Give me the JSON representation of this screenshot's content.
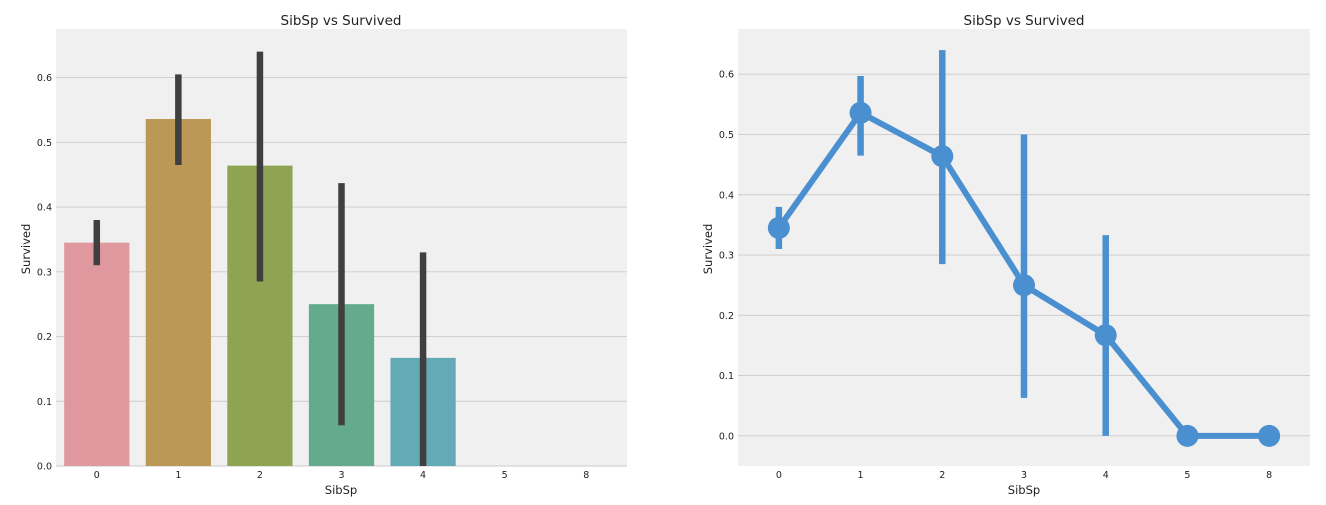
{
  "chart_data": [
    {
      "type": "bar",
      "title": "SibSp vs Survived",
      "xlabel": "SibSp",
      "ylabel": "Survived",
      "categories": [
        "0",
        "1",
        "2",
        "3",
        "4",
        "5",
        "8"
      ],
      "values": [
        0.345,
        0.536,
        0.464,
        0.25,
        0.167,
        0.0,
        0.0
      ],
      "error_bars": [
        [
          0.31,
          0.38
        ],
        [
          0.465,
          0.605
        ],
        [
          0.285,
          0.64
        ],
        [
          0.063,
          0.437
        ],
        [
          0.0,
          0.33
        ],
        null,
        null
      ],
      "colors": [
        "#e0989f",
        "#bc9856",
        "#8ea453",
        "#64ab8e",
        "#64a9b6",
        "#8d9fd5",
        "#c295cf"
      ],
      "error_color": "#3f3f3f",
      "ylim": [
        0,
        0.675
      ],
      "yticks": [
        0.0,
        0.1,
        0.2,
        0.3,
        0.4,
        0.5,
        0.6
      ],
      "ytick_labels": [
        "0.0",
        "0.1",
        "0.2",
        "0.3",
        "0.4",
        "0.5",
        "0.6"
      ],
      "grid": "horizontal"
    },
    {
      "type": "line",
      "title": "SibSp vs Survived",
      "xlabel": "SibSp",
      "ylabel": "Survived",
      "categories": [
        "0",
        "1",
        "2",
        "3",
        "4",
        "5",
        "8"
      ],
      "values": [
        0.345,
        0.536,
        0.464,
        0.25,
        0.167,
        0.0,
        0.0
      ],
      "error_bars": [
        [
          0.31,
          0.38
        ],
        [
          0.465,
          0.597
        ],
        [
          0.285,
          0.64
        ],
        [
          0.063,
          0.5
        ],
        [
          0.0,
          0.333
        ],
        null,
        null
      ],
      "color": "#4a8fd0",
      "ylim": [
        -0.05,
        0.675
      ],
      "yticks": [
        0.0,
        0.1,
        0.2,
        0.3,
        0.4,
        0.5,
        0.6
      ],
      "ytick_labels": [
        "0.0",
        "0.1",
        "0.2",
        "0.3",
        "0.4",
        "0.5",
        "0.6"
      ],
      "grid": "horizontal"
    }
  ]
}
